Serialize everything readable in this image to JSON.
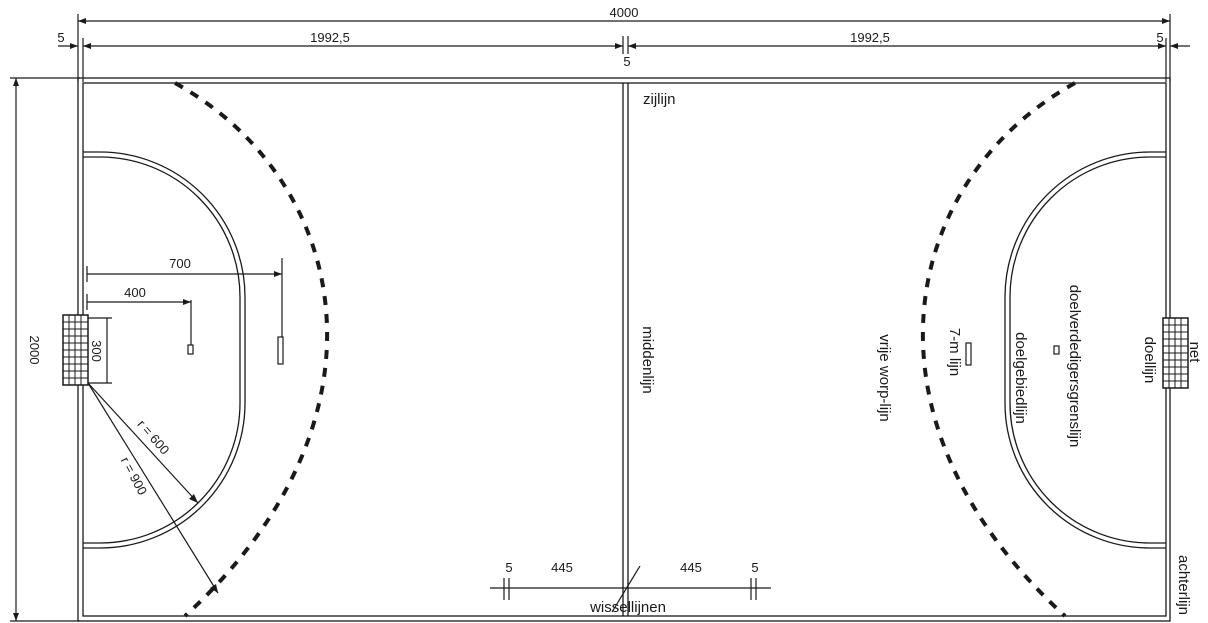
{
  "dimensions": {
    "total_length": "4000",
    "half_length_left": "1992,5",
    "half_length_right": "1992,5",
    "line_width_left": "5",
    "line_width_right": "5",
    "center_line_width": "5",
    "width": "2000",
    "seven_m_distance": "700",
    "goalkeeper_line_distance": "400",
    "goal_width": "300",
    "goal_area_radius": "r = 600",
    "free_throw_radius": "r = 900",
    "sub_line_offset_left": "445",
    "sub_line_offset_right": "445",
    "sub_line_width_left": "5",
    "sub_line_width_right": "5"
  },
  "labels": {
    "side_line": "zijlijn",
    "center_line": "middenlijn",
    "substitution_lines": "wissellijnen",
    "free_throw_line": "vrije worp-lijn",
    "seven_m_line": "7-m lijn",
    "goal_area_line": "doelgebiedlijn",
    "goalkeeper_line": "doelverdedigersgrenslijn",
    "goal_line": "doellijn",
    "net": "net",
    "back_line": "achterlijn"
  },
  "colors": {
    "ink": "#1a1a1a",
    "background": "#ffffff"
  }
}
